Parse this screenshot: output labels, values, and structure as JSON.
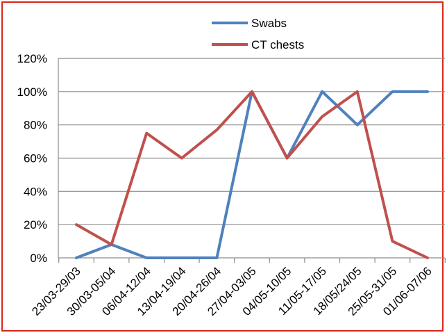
{
  "chart_data": {
    "type": "line",
    "categories": [
      "23/03-29/03",
      "30/03-05/04",
      "06/04-12/04",
      "13/04-19/04",
      "20/04-26/04",
      "27/04-03/05",
      "04/05-10/05",
      "11/05-17/05",
      "18/05/24/05",
      "25/05-31/05",
      "01/06-07/06"
    ],
    "series": [
      {
        "name": "Swabs",
        "color": "#4f81bd",
        "values": [
          0,
          8,
          0,
          0,
          0,
          100,
          60,
          100,
          80,
          100,
          100
        ]
      },
      {
        "name": "CT chests",
        "color": "#c0504d",
        "values": [
          20,
          8,
          75,
          60,
          77,
          100,
          60,
          85,
          100,
          10,
          0
        ]
      }
    ],
    "ylim": [
      0,
      120
    ],
    "yticks": [
      "0%",
      "20%",
      "40%",
      "60%",
      "80%",
      "100%",
      "120%"
    ],
    "grid": true,
    "legend_position": "top-center",
    "title": "",
    "xlabel": "",
    "ylabel": ""
  }
}
